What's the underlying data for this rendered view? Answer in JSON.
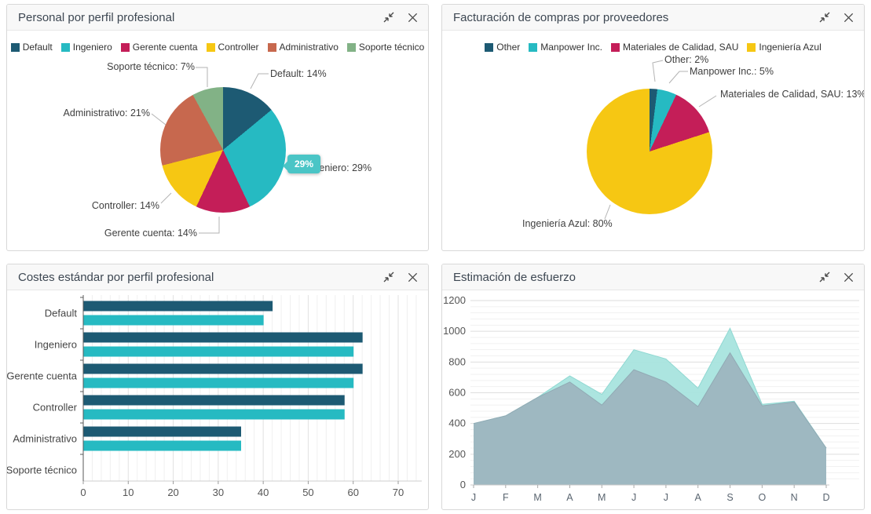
{
  "panels": [
    {
      "title": "Personal por perfil profesional"
    },
    {
      "title": "Facturación de compras por proveedores"
    },
    {
      "title": "Costes estándar por perfil profesional"
    },
    {
      "title": "Estimación de esfuerzo"
    }
  ],
  "controls": {
    "collapse": "collapse-panel",
    "close": "close-panel"
  },
  "chart_data": [
    {
      "type": "pie",
      "title": "Personal por perfil profesional",
      "labels": [
        "Default",
        "Ingeniero",
        "Gerente cuenta",
        "Controller",
        "Administrativo",
        "Soporte técnico"
      ],
      "values": [
        14,
        29,
        14,
        14,
        21,
        7
      ],
      "colors": [
        "#1d5a73",
        "#26bac2",
        "#c41e58",
        "#f6c713",
        "#c7684e",
        "#82b286"
      ],
      "legend_position": "top",
      "label_format": "{name}: {value}%",
      "tooltip": {
        "text": "29%",
        "target": "Ingeniero",
        "color": "#4ac5c6"
      }
    },
    {
      "type": "pie",
      "title": "Facturación de compras por proveedores",
      "labels": [
        "Other",
        "Manpower Inc.",
        "Materiales de Calidad, SAU",
        "Ingeniería Azul"
      ],
      "values": [
        2,
        5,
        13,
        80
      ],
      "colors": [
        "#1d5a73",
        "#26bac2",
        "#c41e58",
        "#f6c713"
      ],
      "legend_position": "top",
      "label_format": "{name}: {value}%"
    },
    {
      "type": "bar",
      "orientation": "horizontal",
      "title": "Costes estándar por perfil profesional",
      "categories": [
        "Default",
        "Ingeniero",
        "Gerente cuenta",
        "Controller",
        "Administrativo",
        "Soporte técnico"
      ],
      "series": [
        {
          "color": "#1d5a73",
          "values": [
            42,
            62,
            62,
            58,
            35,
            0
          ]
        },
        {
          "color": "#26bac2",
          "values": [
            40,
            60,
            60,
            58,
            35,
            0
          ]
        }
      ],
      "xlim": [
        0,
        70
      ],
      "xticks": [
        0,
        10,
        20,
        30,
        40,
        50,
        60,
        70
      ],
      "grid": "vertical, minor every 2 units",
      "legend_position": "none"
    },
    {
      "type": "area",
      "title": "Estimación de esfuerzo",
      "x": [
        "J",
        "F",
        "M",
        "A",
        "M",
        "J",
        "J",
        "A",
        "S",
        "O",
        "N",
        "D"
      ],
      "series": [
        {
          "color": "#a9e4df",
          "values": [
            400,
            450,
            570,
            710,
            590,
            880,
            820,
            630,
            1020,
            525,
            545,
            240
          ]
        },
        {
          "color": "#9db6bf",
          "values": [
            400,
            450,
            570,
            670,
            520,
            750,
            670,
            510,
            860,
            515,
            540,
            240
          ]
        }
      ],
      "ylim": [
        0,
        1200
      ],
      "yticks": [
        0,
        200,
        400,
        600,
        800,
        1000,
        1200
      ],
      "grid": "horizontal, minor every 40 units",
      "legend_position": "none"
    }
  ]
}
